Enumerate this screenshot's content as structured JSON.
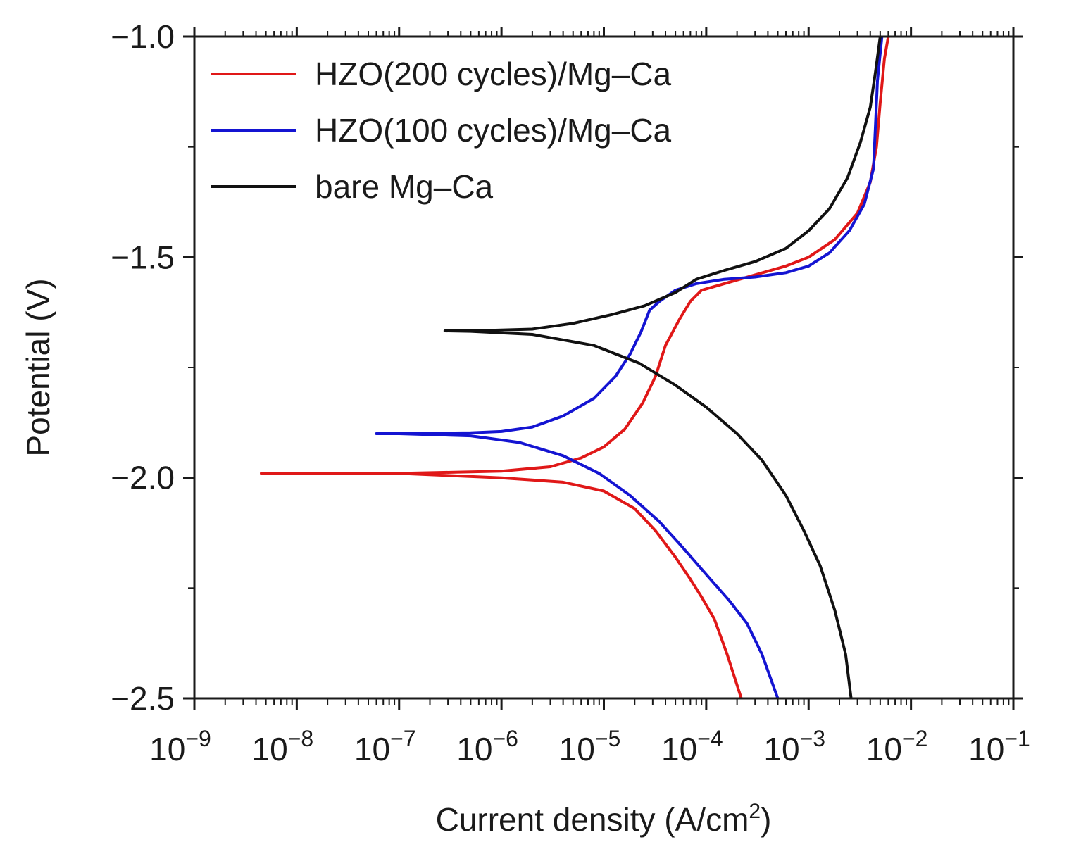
{
  "chart_data": {
    "type": "line",
    "title": "",
    "xlabel": "Current density (A/cm",
    "xlabel_superscript": "2",
    "xlabel_suffix": ")",
    "ylabel": "Potential (V)",
    "x_scale": "log",
    "xlim": [
      1e-09,
      0.1
    ],
    "ylim": [
      -2.5,
      -1.0
    ],
    "x_ticks": [
      {
        "exp": -9,
        "base": "10",
        "power": "−9"
      },
      {
        "exp": -8,
        "base": "10",
        "power": "−8"
      },
      {
        "exp": -7,
        "base": "10",
        "power": "−7"
      },
      {
        "exp": -6,
        "base": "10",
        "power": "−6"
      },
      {
        "exp": -5,
        "base": "10",
        "power": "−5"
      },
      {
        "exp": -4,
        "base": "10",
        "power": "−4"
      },
      {
        "exp": -3,
        "base": "10",
        "power": "−3"
      },
      {
        "exp": -2,
        "base": "10",
        "power": "−2"
      },
      {
        "exp": -1,
        "base": "10",
        "power": "−1"
      }
    ],
    "y_ticks": [
      {
        "value": -1.0,
        "label": "−1.0"
      },
      {
        "value": -1.5,
        "label": "−1.5"
      },
      {
        "value": -2.0,
        "label": "−2.0"
      },
      {
        "value": -2.5,
        "label": "−2.5"
      }
    ],
    "grid": false,
    "legend_position": "top-left",
    "series": [
      {
        "name": "HZO(200 cycles)/Mg–Ca",
        "color": "#e01818",
        "points": [
          [
            0.00022,
            -2.5
          ],
          [
            0.00016,
            -2.4
          ],
          [
            0.00012,
            -2.32
          ],
          [
            9e-05,
            -2.27
          ],
          [
            7e-05,
            -2.23
          ],
          [
            5e-05,
            -2.18
          ],
          [
            3.2e-05,
            -2.12
          ],
          [
            2e-05,
            -2.07
          ],
          [
            1e-05,
            -2.03
          ],
          [
            4e-06,
            -2.01
          ],
          [
            1e-06,
            -2.0
          ],
          [
            1e-07,
            -1.99
          ],
          [
            1e-08,
            -1.99
          ],
          [
            4.5e-09,
            -1.99
          ],
          [
            1e-08,
            -1.99
          ],
          [
            1e-07,
            -1.99
          ],
          [
            1e-06,
            -1.985
          ],
          [
            3e-06,
            -1.975
          ],
          [
            6e-06,
            -1.955
          ],
          [
            1e-05,
            -1.93
          ],
          [
            1.6e-05,
            -1.89
          ],
          [
            2.4e-05,
            -1.83
          ],
          [
            3.2e-05,
            -1.77
          ],
          [
            4e-05,
            -1.7
          ],
          [
            5.5e-05,
            -1.64
          ],
          [
            7e-05,
            -1.6
          ],
          [
            9e-05,
            -1.575
          ],
          [
            0.00015,
            -1.56
          ],
          [
            0.0003,
            -1.54
          ],
          [
            0.0006,
            -1.52
          ],
          [
            0.001,
            -1.5
          ],
          [
            0.0018,
            -1.46
          ],
          [
            0.003,
            -1.4
          ],
          [
            0.004,
            -1.33
          ],
          [
            0.0046,
            -1.25
          ],
          [
            0.005,
            -1.15
          ],
          [
            0.0055,
            -1.05
          ],
          [
            0.006,
            -1.0
          ]
        ]
      },
      {
        "name": "HZO(100 cycles)/Mg–Ca",
        "color": "#1414d2",
        "points": [
          [
            0.0005,
            -2.5
          ],
          [
            0.00035,
            -2.4
          ],
          [
            0.00025,
            -2.33
          ],
          [
            0.00017,
            -2.28
          ],
          [
            0.00011,
            -2.23
          ],
          [
            6e-05,
            -2.16
          ],
          [
            3.5e-05,
            -2.1
          ],
          [
            1.8e-05,
            -2.04
          ],
          [
            9e-06,
            -1.99
          ],
          [
            4e-06,
            -1.95
          ],
          [
            1.5e-06,
            -1.92
          ],
          [
            5e-07,
            -1.905
          ],
          [
            1e-07,
            -1.9
          ],
          [
            6e-08,
            -1.9
          ],
          [
            1e-07,
            -1.9
          ],
          [
            5e-07,
            -1.898
          ],
          [
            1e-06,
            -1.895
          ],
          [
            2e-06,
            -1.885
          ],
          [
            4e-06,
            -1.86
          ],
          [
            8e-06,
            -1.82
          ],
          [
            1.3e-05,
            -1.77
          ],
          [
            1.8e-05,
            -1.72
          ],
          [
            2.3e-05,
            -1.67
          ],
          [
            2.8e-05,
            -1.62
          ],
          [
            3.5e-05,
            -1.6
          ],
          [
            5e-05,
            -1.575
          ],
          [
            8e-05,
            -1.56
          ],
          [
            0.00015,
            -1.55
          ],
          [
            0.0003,
            -1.545
          ],
          [
            0.0006,
            -1.535
          ],
          [
            0.001,
            -1.52
          ],
          [
            0.0016,
            -1.49
          ],
          [
            0.0025,
            -1.44
          ],
          [
            0.0035,
            -1.38
          ],
          [
            0.0043,
            -1.3
          ],
          [
            0.0045,
            -1.2
          ],
          [
            0.0047,
            -1.1
          ],
          [
            0.0052,
            -1.0
          ]
        ]
      },
      {
        "name": "bare Mg–Ca",
        "color": "#111111",
        "points": [
          [
            0.0026,
            -2.5
          ],
          [
            0.0023,
            -2.4
          ],
          [
            0.0018,
            -2.3
          ],
          [
            0.0013,
            -2.2
          ],
          [
            0.0009,
            -2.12
          ],
          [
            0.0006,
            -2.04
          ],
          [
            0.00035,
            -1.96
          ],
          [
            0.0002,
            -1.9
          ],
          [
            0.0001,
            -1.84
          ],
          [
            5e-05,
            -1.79
          ],
          [
            2.2e-05,
            -1.74
          ],
          [
            8e-06,
            -1.7
          ],
          [
            2e-06,
            -1.675
          ],
          [
            5e-07,
            -1.668
          ],
          [
            2.8e-07,
            -1.667
          ],
          [
            5e-07,
            -1.667
          ],
          [
            2e-06,
            -1.663
          ],
          [
            5e-06,
            -1.65
          ],
          [
            1.2e-05,
            -1.63
          ],
          [
            2.5e-05,
            -1.61
          ],
          [
            5e-05,
            -1.58
          ],
          [
            8e-05,
            -1.55
          ],
          [
            0.00015,
            -1.53
          ],
          [
            0.0003,
            -1.51
          ],
          [
            0.0006,
            -1.48
          ],
          [
            0.001,
            -1.44
          ],
          [
            0.0016,
            -1.39
          ],
          [
            0.0024,
            -1.32
          ],
          [
            0.0032,
            -1.24
          ],
          [
            0.004,
            -1.16
          ],
          [
            0.0045,
            -1.08
          ],
          [
            0.005,
            -1.0
          ]
        ]
      }
    ]
  }
}
